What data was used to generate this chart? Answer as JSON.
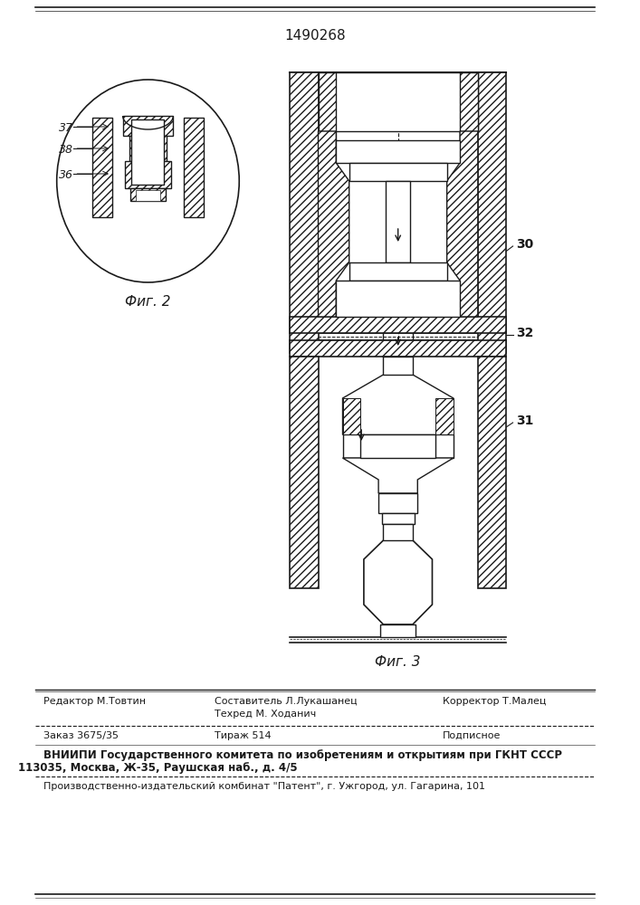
{
  "patent_number": "1490268",
  "fig2_label": "Фиг. 2",
  "fig3_label": "Фиг. 3",
  "label_37": "37",
  "label_38": "38",
  "label_36": "36",
  "label_30": "30",
  "label_32": "32",
  "label_31": "31",
  "footer_col1_r1": "Редактор М.Товтин",
  "footer_col2_r1a": "Составитель Л.Лукашанец",
  "footer_col2_r1b": "Техред М. Ходанич",
  "footer_col3_r1": "Корректор Т.Малец",
  "footer_col1_r2": "Заказ 3675/35",
  "footer_col2_r2": "Тираж 514",
  "footer_col3_r2": "Подписное",
  "footer_r3": "ВНИИПИ Государственного комитета по изобретениям и открытиям при ГКНТ СССР",
  "footer_r4": "113035, Москва, Ж-35, Раушская наб., д. 4/5",
  "footer_r5": "Производственно-издательский комбинат \"Патент\", г. Ужгород, ул. Гагарина, 101",
  "bg_color": "#ffffff",
  "lc": "#1a1a1a"
}
